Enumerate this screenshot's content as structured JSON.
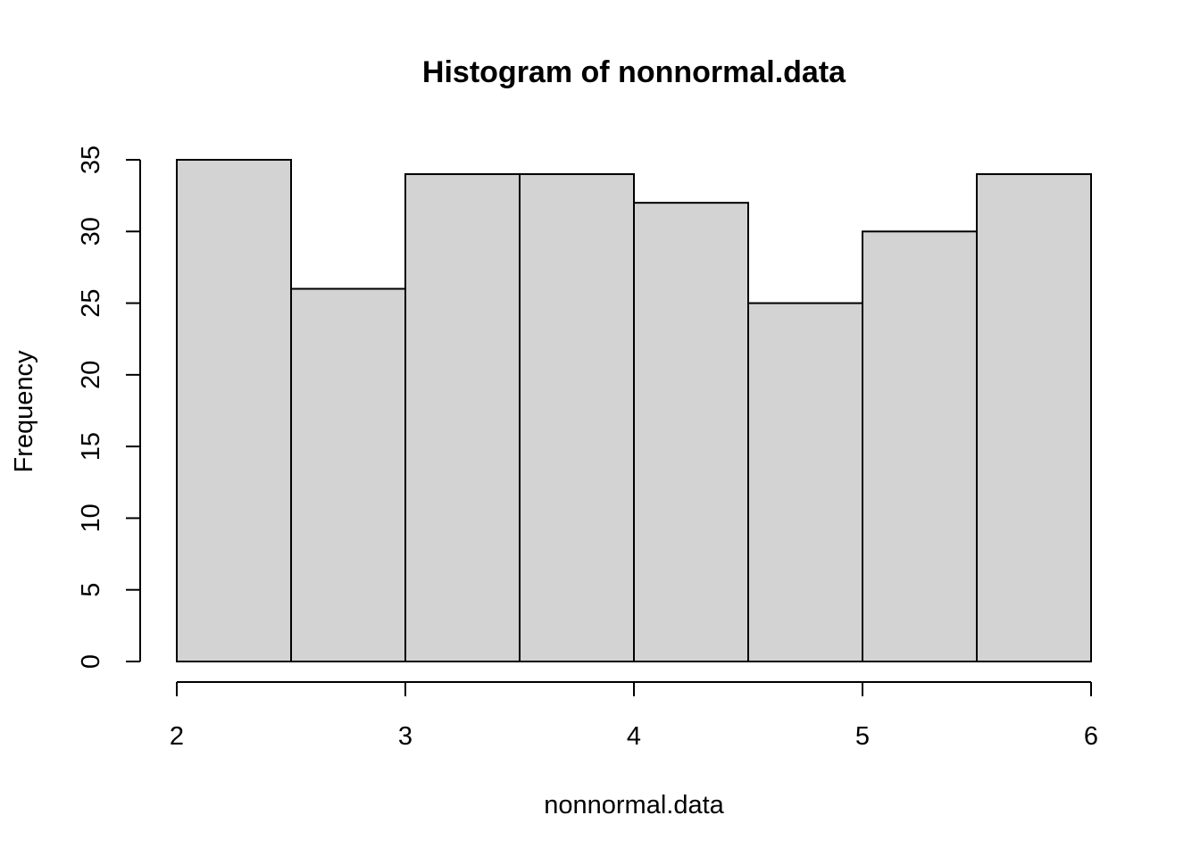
{
  "chart_data": {
    "type": "bar",
    "title": "Histogram of nonnormal.data",
    "xlabel": "nonnormal.data",
    "ylabel": "Frequency",
    "bins": [
      {
        "from": 2.0,
        "to": 2.5,
        "count": 35
      },
      {
        "from": 2.5,
        "to": 3.0,
        "count": 26
      },
      {
        "from": 3.0,
        "to": 3.5,
        "count": 34
      },
      {
        "from": 3.5,
        "to": 4.0,
        "count": 34
      },
      {
        "from": 4.0,
        "to": 4.5,
        "count": 32
      },
      {
        "from": 4.5,
        "to": 5.0,
        "count": 25
      },
      {
        "from": 5.0,
        "to": 5.5,
        "count": 30
      },
      {
        "from": 5.5,
        "to": 6.0,
        "count": 34
      }
    ],
    "xlim": [
      2,
      6
    ],
    "ylim": [
      0,
      35
    ],
    "x_ticks": [
      2,
      3,
      4,
      5,
      6
    ],
    "y_ticks": [
      0,
      5,
      10,
      15,
      20,
      25,
      30,
      35
    ],
    "grid": false,
    "colors": {
      "bar_fill": "#d3d3d3",
      "bar_stroke": "#000000"
    }
  }
}
